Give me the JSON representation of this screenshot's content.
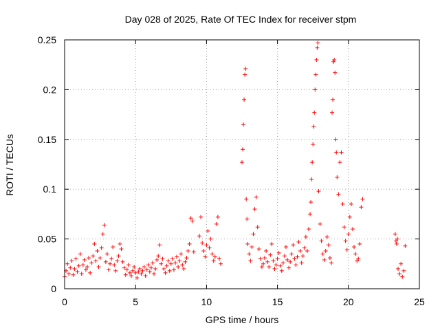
{
  "chart_data": {
    "type": "scatter",
    "title": "Day 028 of 2025, Rate Of TEC Index for receiver stpm",
    "xlabel": "GPS time / hours",
    "ylabel": "ROTI / TECUs",
    "xlim": [
      0,
      25
    ],
    "ylim": [
      0,
      0.25
    ],
    "x_ticks": [
      "0",
      "5",
      "10",
      "15",
      "20",
      "25"
    ],
    "y_ticks": [
      "0",
      "0.05",
      "0.1",
      "0.15",
      "0.2",
      "0.25"
    ],
    "grid": true,
    "marker": "+",
    "color": "#ff0000",
    "series": [
      {
        "points": [
          [
            0.0,
            0.012
          ],
          [
            0.1,
            0.018
          ],
          [
            0.2,
            0.025
          ],
          [
            0.3,
            0.015
          ],
          [
            0.4,
            0.021
          ],
          [
            0.5,
            0.028
          ],
          [
            0.6,
            0.014
          ],
          [
            0.7,
            0.02
          ],
          [
            0.8,
            0.03
          ],
          [
            0.9,
            0.017
          ],
          [
            1.0,
            0.023
          ],
          [
            1.1,
            0.035
          ],
          [
            1.2,
            0.015
          ],
          [
            1.3,
            0.024
          ],
          [
            1.4,
            0.029
          ],
          [
            1.5,
            0.019
          ],
          [
            1.6,
            0.022
          ],
          [
            1.7,
            0.031
          ],
          [
            1.8,
            0.016
          ],
          [
            1.9,
            0.026
          ],
          [
            2.0,
            0.033
          ],
          [
            2.1,
            0.045
          ],
          [
            2.2,
            0.028
          ],
          [
            2.3,
            0.038
          ],
          [
            2.4,
            0.022
          ],
          [
            2.5,
            0.031
          ],
          [
            2.6,
            0.041
          ],
          [
            2.7,
            0.055
          ],
          [
            2.8,
            0.064
          ],
          [
            2.9,
            0.027
          ],
          [
            3.0,
            0.035
          ],
          [
            3.1,
            0.019
          ],
          [
            3.2,
            0.025
          ],
          [
            3.3,
            0.03
          ],
          [
            3.4,
            0.042
          ],
          [
            3.5,
            0.024
          ],
          [
            3.6,
            0.018
          ],
          [
            3.7,
            0.028
          ],
          [
            3.8,
            0.033
          ],
          [
            3.9,
            0.045
          ],
          [
            4.0,
            0.04
          ],
          [
            4.1,
            0.027
          ],
          [
            4.2,
            0.021
          ],
          [
            4.3,
            0.014
          ],
          [
            4.4,
            0.019
          ],
          [
            4.5,
            0.024
          ],
          [
            4.6,
            0.016
          ],
          [
            4.7,
            0.013
          ],
          [
            4.8,
            0.018
          ],
          [
            4.9,
            0.022
          ],
          [
            5.0,
            0.016
          ],
          [
            5.1,
            0.011
          ],
          [
            5.2,
            0.017
          ],
          [
            5.3,
            0.02
          ],
          [
            5.4,
            0.015
          ],
          [
            5.5,
            0.018
          ],
          [
            5.6,
            0.022
          ],
          [
            5.7,
            0.013
          ],
          [
            5.8,
            0.019
          ],
          [
            5.9,
            0.024
          ],
          [
            6.0,
            0.017
          ],
          [
            6.1,
            0.021
          ],
          [
            6.2,
            0.026
          ],
          [
            6.3,
            0.015
          ],
          [
            6.4,
            0.02
          ],
          [
            6.5,
            0.029
          ],
          [
            6.6,
            0.033
          ],
          [
            6.7,
            0.044
          ],
          [
            6.8,
            0.025
          ],
          [
            6.9,
            0.03
          ],
          [
            7.0,
            0.02
          ],
          [
            7.1,
            0.016
          ],
          [
            7.2,
            0.023
          ],
          [
            7.3,
            0.028
          ],
          [
            7.4,
            0.018
          ],
          [
            7.5,
            0.025
          ],
          [
            7.6,
            0.03
          ],
          [
            7.7,
            0.019
          ],
          [
            7.8,
            0.026
          ],
          [
            7.9,
            0.032
          ],
          [
            8.0,
            0.022
          ],
          [
            8.1,
            0.028
          ],
          [
            8.2,
            0.035
          ],
          [
            8.3,
            0.024
          ],
          [
            8.4,
            0.02
          ],
          [
            8.5,
            0.027
          ],
          [
            8.6,
            0.031
          ],
          [
            8.7,
            0.038
          ],
          [
            8.8,
            0.045
          ],
          [
            8.9,
            0.071
          ],
          [
            9.0,
            0.068
          ],
          [
            9.1,
            0.037
          ],
          [
            9.5,
            0.053
          ],
          [
            9.6,
            0.072
          ],
          [
            9.7,
            0.046
          ],
          [
            9.8,
            0.038
          ],
          [
            9.9,
            0.032
          ],
          [
            10.0,
            0.044
          ],
          [
            10.1,
            0.058
          ],
          [
            10.2,
            0.041
          ],
          [
            10.3,
            0.05
          ],
          [
            10.4,
            0.035
          ],
          [
            10.5,
            0.028
          ],
          [
            10.6,
            0.032
          ],
          [
            10.7,
            0.065
          ],
          [
            10.8,
            0.072
          ],
          [
            10.9,
            0.03
          ],
          [
            11.0,
            0.025
          ],
          [
            12.5,
            0.127
          ],
          [
            12.55,
            0.14
          ],
          [
            12.6,
            0.165
          ],
          [
            12.65,
            0.19
          ],
          [
            12.7,
            0.215
          ],
          [
            12.75,
            0.221
          ],
          [
            12.8,
            0.09
          ],
          [
            12.85,
            0.07
          ],
          [
            12.9,
            0.045
          ],
          [
            13.0,
            0.035
          ],
          [
            13.1,
            0.028
          ],
          [
            13.2,
            0.042
          ],
          [
            13.3,
            0.055
          ],
          [
            13.4,
            0.08
          ],
          [
            13.5,
            0.092
          ],
          [
            13.6,
            0.062
          ],
          [
            13.7,
            0.04
          ],
          [
            13.8,
            0.03
          ],
          [
            13.9,
            0.022
          ],
          [
            14.0,
            0.025
          ],
          [
            14.1,
            0.031
          ],
          [
            14.2,
            0.038
          ],
          [
            14.3,
            0.027
          ],
          [
            14.4,
            0.022
          ],
          [
            14.5,
            0.034
          ],
          [
            14.6,
            0.045
          ],
          [
            14.7,
            0.028
          ],
          [
            14.8,
            0.02
          ],
          [
            14.9,
            0.024
          ],
          [
            15.0,
            0.03
          ],
          [
            15.1,
            0.036
          ],
          [
            15.2,
            0.023
          ],
          [
            15.3,
            0.018
          ],
          [
            15.4,
            0.026
          ],
          [
            15.5,
            0.033
          ],
          [
            15.6,
            0.042
          ],
          [
            15.7,
            0.029
          ],
          [
            15.8,
            0.021
          ],
          [
            15.9,
            0.027
          ],
          [
            16.0,
            0.035
          ],
          [
            16.1,
            0.044
          ],
          [
            16.2,
            0.03
          ],
          [
            16.3,
            0.024
          ],
          [
            16.4,
            0.032
          ],
          [
            16.5,
            0.047
          ],
          [
            16.6,
            0.038
          ],
          [
            16.7,
            0.026
          ],
          [
            16.8,
            0.033
          ],
          [
            16.9,
            0.041
          ],
          [
            17.0,
            0.052
          ],
          [
            17.1,
            0.038
          ],
          [
            17.2,
            0.06
          ],
          [
            17.3,
            0.075
          ],
          [
            17.35,
            0.087
          ],
          [
            17.4,
            0.11
          ],
          [
            17.45,
            0.127
          ],
          [
            17.5,
            0.145
          ],
          [
            17.55,
            0.163
          ],
          [
            17.6,
            0.177
          ],
          [
            17.65,
            0.2
          ],
          [
            17.7,
            0.215
          ],
          [
            17.75,
            0.23
          ],
          [
            17.8,
            0.242
          ],
          [
            17.85,
            0.247
          ],
          [
            17.9,
            0.098
          ],
          [
            18.0,
            0.065
          ],
          [
            18.1,
            0.048
          ],
          [
            18.2,
            0.035
          ],
          [
            18.3,
            0.029
          ],
          [
            18.4,
            0.038
          ],
          [
            18.5,
            0.052
          ],
          [
            18.6,
            0.044
          ],
          [
            18.7,
            0.031
          ],
          [
            18.8,
            0.026
          ],
          [
            18.85,
            0.177
          ],
          [
            18.9,
            0.19
          ],
          [
            18.95,
            0.228
          ],
          [
            19.0,
            0.23
          ],
          [
            19.05,
            0.217
          ],
          [
            19.1,
            0.15
          ],
          [
            19.15,
            0.137
          ],
          [
            19.2,
            0.112
          ],
          [
            19.3,
            0.095
          ],
          [
            19.4,
            0.127
          ],
          [
            19.5,
            0.137
          ],
          [
            19.6,
            0.085
          ],
          [
            19.7,
            0.062
          ],
          [
            19.8,
            0.048
          ],
          [
            19.9,
            0.039
          ],
          [
            20.0,
            0.055
          ],
          [
            20.1,
            0.072
          ],
          [
            20.2,
            0.085
          ],
          [
            20.3,
            0.06
          ],
          [
            20.4,
            0.042
          ],
          [
            20.5,
            0.035
          ],
          [
            20.6,
            0.028
          ],
          [
            20.7,
            0.03
          ],
          [
            20.8,
            0.045
          ],
          [
            20.9,
            0.082
          ],
          [
            21.0,
            0.09
          ],
          [
            23.3,
            0.055
          ],
          [
            23.35,
            0.048
          ],
          [
            23.4,
            0.045
          ],
          [
            23.45,
            0.05
          ],
          [
            23.5,
            0.02
          ],
          [
            23.6,
            0.015
          ],
          [
            23.7,
            0.025
          ],
          [
            23.8,
            0.012
          ],
          [
            23.9,
            0.018
          ],
          [
            24.0,
            0.043
          ]
        ]
      }
    ]
  }
}
